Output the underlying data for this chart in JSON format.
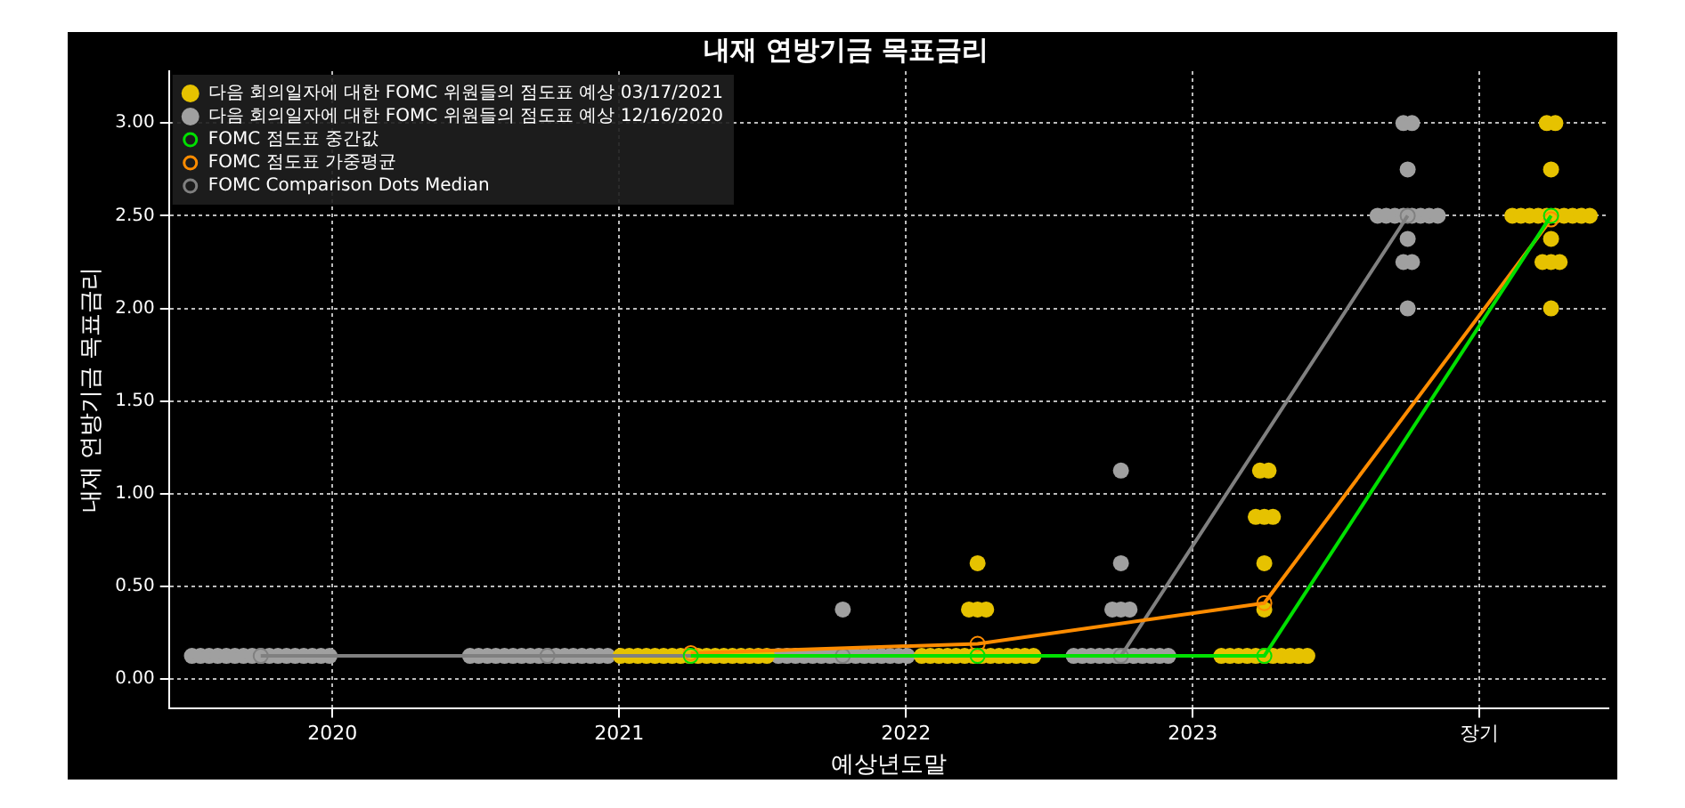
{
  "chart_data": {
    "type": "scatter",
    "title": "내재 연방기금 목표금리",
    "xlabel": "예상년도말",
    "ylabel": "내재 연방기금 목표금리",
    "xlim": [
      2019.43,
      2024.45
    ],
    "xticks": [
      2020,
      2021,
      2022,
      2023,
      {
        "value": 2024,
        "label": "장기"
      }
    ],
    "ylim": [
      -0.16,
      3.28
    ],
    "yticks": [
      {
        "value": 0,
        "label": "0.00"
      },
      {
        "value": 0.5,
        "label": "0.50"
      },
      {
        "value": 1,
        "label": "1.00"
      },
      {
        "value": 1.5,
        "label": "1.50"
      },
      {
        "value": 2,
        "label": "2.00"
      },
      {
        "value": 2.5,
        "label": "2.50"
      },
      {
        "value": 3,
        "label": "3.00"
      }
    ],
    "grid": true,
    "legend": "top left",
    "marker": "circle",
    "series": [
      {
        "name": "다음 회의일자에 대한 FOMC 위원들의 점도표 예상 03/17/2021",
        "color": "#e6c200",
        "x": [
          2021.005,
          2021.035,
          2021.065,
          2021.095,
          2021.125,
          2021.155,
          2021.185,
          2021.215,
          2021.245,
          2021.275,
          2021.305,
          2021.335,
          2021.365,
          2021.395,
          2021.425,
          2021.455,
          2021.485,
          2021.515,
          2022.055,
          2022.085,
          2022.115,
          2022.145,
          2022.175,
          2022.205,
          2022.235,
          2022.265,
          2022.295,
          2022.325,
          2022.355,
          2022.385,
          2022.415,
          2022.445,
          2022.22,
          2022.25,
          2022.28,
          2022.25,
          2023.1,
          2023.13,
          2023.16,
          2023.19,
          2023.22,
          2023.25,
          2023.28,
          2023.31,
          2023.34,
          2023.37,
          2023.4,
          2023.25,
          2023.25,
          2023.22,
          2023.25,
          2023.28,
          2023.235,
          2023.265,
          2024.235,
          2024.265,
          2024.25,
          2024.115,
          2024.145,
          2024.175,
          2024.205,
          2024.235,
          2024.265,
          2024.295,
          2024.325,
          2024.355,
          2024.385,
          2024.25,
          2024.22,
          2024.25,
          2024.28,
          2024.25
        ],
        "values": [
          0.125,
          0.125,
          0.125,
          0.125,
          0.125,
          0.125,
          0.125,
          0.125,
          0.125,
          0.125,
          0.125,
          0.125,
          0.125,
          0.125,
          0.125,
          0.125,
          0.125,
          0.125,
          0.125,
          0.125,
          0.125,
          0.125,
          0.125,
          0.125,
          0.125,
          0.125,
          0.125,
          0.125,
          0.125,
          0.125,
          0.125,
          0.125,
          0.375,
          0.375,
          0.375,
          0.625,
          0.125,
          0.125,
          0.125,
          0.125,
          0.125,
          0.125,
          0.125,
          0.125,
          0.125,
          0.125,
          0.125,
          0.375,
          0.625,
          0.875,
          0.875,
          0.875,
          1.125,
          1.125,
          3.0,
          3.0,
          2.75,
          2.5,
          2.5,
          2.5,
          2.5,
          2.5,
          2.5,
          2.5,
          2.5,
          2.5,
          2.5,
          2.375,
          2.25,
          2.25,
          2.25,
          2.0
        ]
      },
      {
        "name": "다음 회의일자에 대한 FOMC 위원들의 점도표 예상 12/16/2020",
        "color": "#a0a0a0",
        "x": [
          2019.51,
          2019.54,
          2019.57,
          2019.6,
          2019.63,
          2019.66,
          2019.69,
          2019.72,
          2019.75,
          2019.78,
          2019.81,
          2019.84,
          2019.87,
          2019.9,
          2019.93,
          2019.96,
          2019.99,
          2020.48,
          2020.51,
          2020.54,
          2020.57,
          2020.6,
          2020.63,
          2020.66,
          2020.69,
          2020.72,
          2020.75,
          2020.78,
          2020.81,
          2020.84,
          2020.87,
          2020.9,
          2020.93,
          2020.96,
          2021.555,
          2021.585,
          2021.615,
          2021.645,
          2021.675,
          2021.705,
          2021.735,
          2021.765,
          2021.795,
          2021.825,
          2021.855,
          2021.885,
          2021.915,
          2021.945,
          2021.975,
          2022.005,
          2021.78,
          2022.585,
          2022.615,
          2022.645,
          2022.675,
          2022.705,
          2022.735,
          2022.765,
          2022.795,
          2022.825,
          2022.855,
          2022.885,
          2022.915,
          2022.72,
          2022.75,
          2022.78,
          2022.75,
          2022.75,
          2023.735,
          2023.765,
          2023.75,
          2023.645,
          2023.675,
          2023.705,
          2023.735,
          2023.765,
          2023.795,
          2023.825,
          2023.855,
          2023.75,
          2023.735,
          2023.765,
          2023.75
        ],
        "values": [
          0.125,
          0.125,
          0.125,
          0.125,
          0.125,
          0.125,
          0.125,
          0.125,
          0.125,
          0.125,
          0.125,
          0.125,
          0.125,
          0.125,
          0.125,
          0.125,
          0.125,
          0.125,
          0.125,
          0.125,
          0.125,
          0.125,
          0.125,
          0.125,
          0.125,
          0.125,
          0.125,
          0.125,
          0.125,
          0.125,
          0.125,
          0.125,
          0.125,
          0.125,
          0.125,
          0.125,
          0.125,
          0.125,
          0.125,
          0.125,
          0.125,
          0.125,
          0.125,
          0.125,
          0.125,
          0.125,
          0.125,
          0.125,
          0.125,
          0.125,
          0.375,
          0.125,
          0.125,
          0.125,
          0.125,
          0.125,
          0.125,
          0.125,
          0.125,
          0.125,
          0.125,
          0.125,
          0.125,
          0.375,
          0.375,
          0.375,
          0.625,
          1.125,
          3.0,
          3.0,
          2.75,
          2.5,
          2.5,
          2.5,
          2.5,
          2.5,
          2.5,
          2.5,
          2.5,
          2.375,
          2.25,
          2.25,
          2.0
        ]
      },
      {
        "name": "FOMC 점도표 중간값",
        "type": "line",
        "color": "#00e000",
        "x": [
          2021.25,
          2022.25,
          2023.25,
          2024.25
        ],
        "values": [
          0.125,
          0.125,
          0.125,
          2.5
        ]
      },
      {
        "name": "FOMC 점도표 가중평균",
        "type": "line",
        "color": "#ff8c00",
        "x": [
          2021.25,
          2022.25,
          2023.25,
          2024.25
        ],
        "values": [
          0.14,
          0.19,
          0.41,
          2.48
        ]
      },
      {
        "name": "FOMC Comparison Dots Median",
        "type": "line",
        "color": "#808080",
        "x": [
          2019.75,
          2020.75,
          2021.78,
          2022.75,
          2023.75
        ],
        "values": [
          0.125,
          0.125,
          0.125,
          0.125,
          2.5
        ]
      }
    ]
  }
}
